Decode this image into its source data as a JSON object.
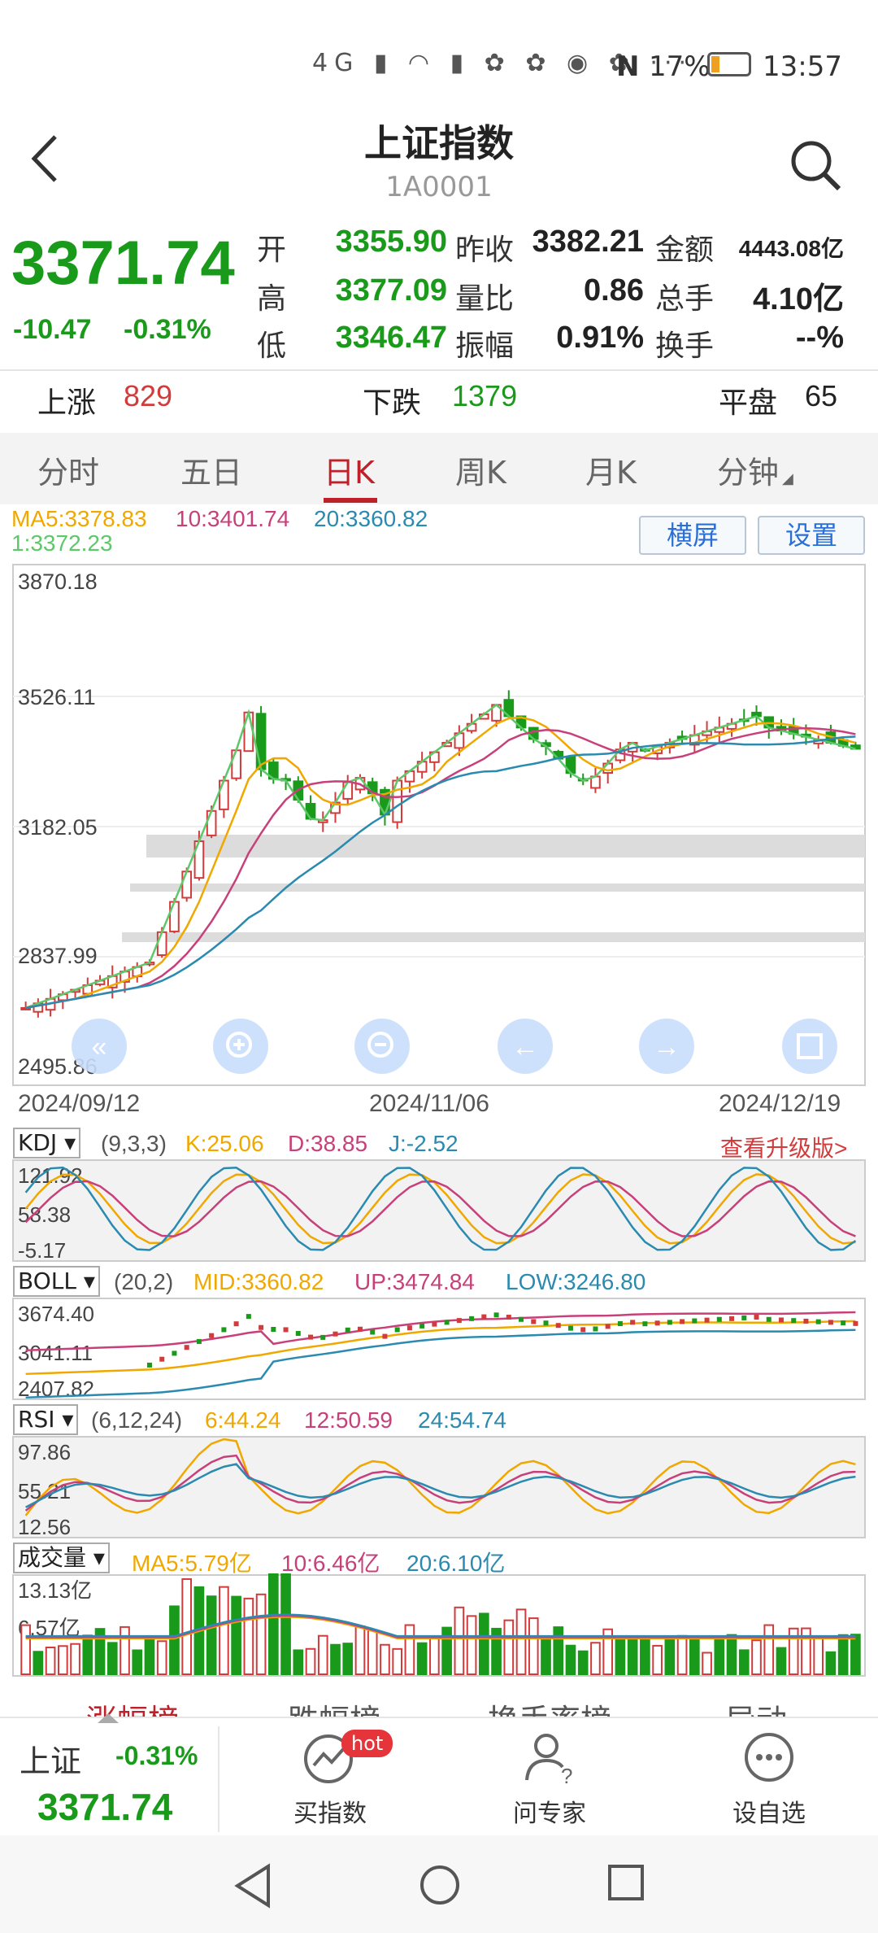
{
  "status": {
    "battery": "17%",
    "time": "13:57",
    "signal_icons": "4G ▮ ◠ ▮ ✿ ✿ ◉ ✿ ···",
    "nfc": "N"
  },
  "header": {
    "title": "上证指数",
    "code": "1A0001"
  },
  "quote": {
    "price": "3371.74",
    "change": "-10.47",
    "change_pct": "-0.31%",
    "open_label": "开",
    "open": "3355.90",
    "high_label": "高",
    "high": "3377.09",
    "low_label": "低",
    "low": "3346.47",
    "prev_close_label": "昨收",
    "prev_close": "3382.21",
    "vol_ratio_label": "量比",
    "vol_ratio": "0.86",
    "amplitude_label": "振幅",
    "amplitude": "0.91%",
    "amount_label": "金额",
    "amount": "4443.08亿",
    "total_hands_label": "总手",
    "total_hands": "4.10亿",
    "turnover_label": "换手",
    "turnover": "--%"
  },
  "breadth": {
    "up_label": "上涨",
    "up": "829",
    "down_label": "下跌",
    "down": "1379",
    "flat_label": "平盘",
    "flat": "65"
  },
  "tabs": [
    "分时",
    "五日",
    "日K",
    "周K",
    "月K",
    "分钟"
  ],
  "active_tab": "日K",
  "ma_legend": {
    "ma5": "MA5:3378.83",
    "ma10": "10:3401.74",
    "ma20": "20:3360.82",
    "ma1": "1:3372.23"
  },
  "buttons": {
    "landscape": "横屏",
    "settings": "设置"
  },
  "kline": {
    "y_labels": [
      "3870.18",
      "3526.11",
      "3182.05",
      "2837.99",
      "2495.86"
    ],
    "x_labels": [
      "2024/09/12",
      "2024/11/06",
      "2024/12/19"
    ]
  },
  "kdj": {
    "name": "KDJ",
    "params": "(9,3,3)",
    "k": "K:25.06",
    "d": "D:38.85",
    "j": "J:-2.52",
    "upgrade": "查看升级版>",
    "y_labels": [
      "121.92",
      "58.38",
      "-5.17"
    ]
  },
  "boll": {
    "name": "BOLL",
    "params": "(20,2)",
    "mid": "MID:3360.82",
    "up": "UP:3474.84",
    "low": "LOW:3246.80",
    "y_labels": [
      "3674.40",
      "3041.11",
      "2407.82"
    ]
  },
  "rsi": {
    "name": "RSI",
    "params": "(6,12,24)",
    "r6": "6:44.24",
    "r12": "12:50.59",
    "r24": "24:54.74",
    "y_labels": [
      "97.86",
      "55.21",
      "12.56"
    ]
  },
  "volume": {
    "name": "成交量",
    "ma5": "MA5:5.79亿",
    "ma10": "10:6.46亿",
    "ma20": "20:6.10亿",
    "y_labels": [
      "13.13亿",
      "6.57亿"
    ]
  },
  "rank_tabs": [
    "涨幅榜",
    "跌幅榜",
    "换手率榜",
    "异动"
  ],
  "bottom": {
    "name": "上证",
    "pct": "-0.31%",
    "price": "3371.74",
    "buy": "买指数",
    "hot": "hot",
    "ask": "问专家",
    "watch": "设自选"
  },
  "colors": {
    "up": "#d23b3b",
    "down": "#1a9a1a",
    "ma5": "#f0a800",
    "ma10": "#c8407a",
    "ma20": "#2a8ab0",
    "ma1": "#5cc86a",
    "accent": "#c0202a"
  }
}
